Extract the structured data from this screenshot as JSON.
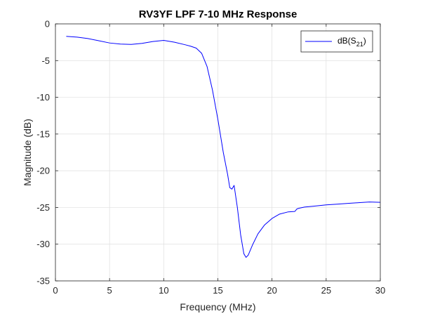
{
  "chart_data": {
    "type": "line",
    "title": "RV3YF LPF 7-10 MHz Response",
    "xlabel": "Frequency (MHz)",
    "ylabel": "Magnitude (dB)",
    "xlim": [
      0,
      30
    ],
    "ylim": [
      -35,
      0
    ],
    "xticks": [
      0,
      5,
      10,
      15,
      20,
      25,
      30
    ],
    "yticks": [
      0,
      -5,
      -10,
      -15,
      -20,
      -25,
      -30,
      -35
    ],
    "grid": true,
    "legend_position": "top-right",
    "legend": {
      "base": "dB(S",
      "sub": "21",
      "close": ")"
    },
    "series": [
      {
        "name": "dB(S21)",
        "color": "#0000ff",
        "x": [
          1.0,
          2.0,
          3.0,
          4.0,
          5.0,
          6.0,
          7.0,
          8.0,
          9.0,
          10.0,
          11.0,
          12.0,
          12.5,
          13.0,
          13.5,
          14.0,
          14.5,
          15.0,
          15.5,
          15.9,
          16.1,
          16.3,
          16.5,
          16.8,
          17.1,
          17.4,
          17.6,
          17.8,
          18.2,
          18.7,
          19.3,
          20.0,
          20.7,
          21.5,
          22.1,
          22.3,
          22.5,
          23.0,
          24.0,
          25.0,
          26.0,
          27.0,
          28.0,
          29.0,
          30.0
        ],
        "y": [
          -1.7,
          -1.8,
          -2.0,
          -2.3,
          -2.6,
          -2.75,
          -2.8,
          -2.65,
          -2.4,
          -2.25,
          -2.5,
          -2.85,
          -3.05,
          -3.3,
          -4.0,
          -5.8,
          -9.0,
          -13.0,
          -17.5,
          -20.5,
          -22.3,
          -22.5,
          -22.0,
          -25.0,
          -28.7,
          -31.3,
          -31.8,
          -31.5,
          -30.1,
          -28.6,
          -27.4,
          -26.5,
          -25.9,
          -25.6,
          -25.55,
          -25.2,
          -25.1,
          -24.95,
          -24.8,
          -24.65,
          -24.55,
          -24.45,
          -24.35,
          -24.25,
          -24.3
        ]
      }
    ]
  }
}
